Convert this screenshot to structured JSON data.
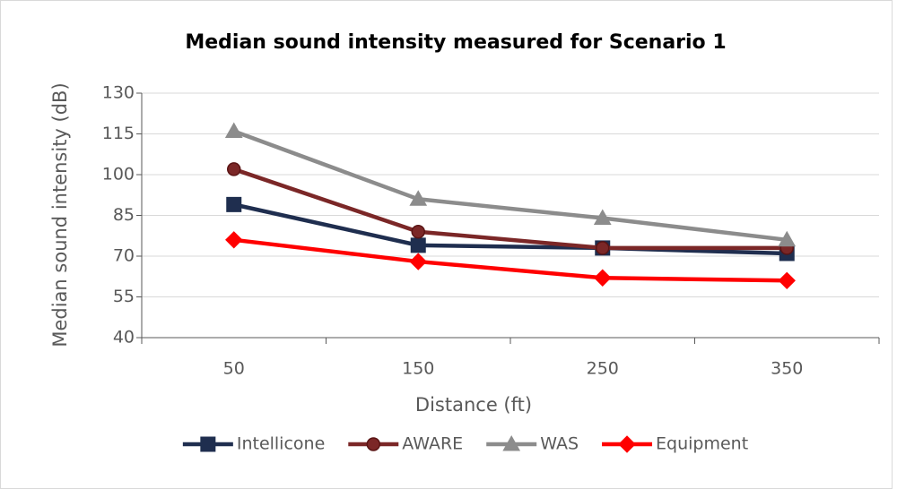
{
  "chart_data": {
    "type": "line",
    "title": "Median sound intensity measured for Scenario 1",
    "x_label": "Distance (ft)",
    "y_label": "Median sound intensity (dB)",
    "categories": [
      "50",
      "150",
      "250",
      "350"
    ],
    "series": [
      {
        "name": "Intellicone",
        "color": "#1f2e4f",
        "marker": "square",
        "values": [
          89,
          74,
          73,
          71
        ]
      },
      {
        "name": "AWARE",
        "color": "#7b2727",
        "marker": "circle",
        "values": [
          102,
          79,
          73,
          73
        ]
      },
      {
        "name": "WAS",
        "color": "#8c8c8c",
        "marker": "triangle",
        "values": [
          116,
          91,
          84,
          76
        ]
      },
      {
        "name": "Equipment",
        "color": "#ff0000",
        "marker": "diamond",
        "values": [
          76,
          68,
          62,
          61
        ]
      }
    ],
    "ylim": [
      40,
      130
    ],
    "yticks": [
      40,
      55,
      70,
      85,
      100,
      115,
      130
    ],
    "grid": true,
    "legend": "bottom"
  }
}
